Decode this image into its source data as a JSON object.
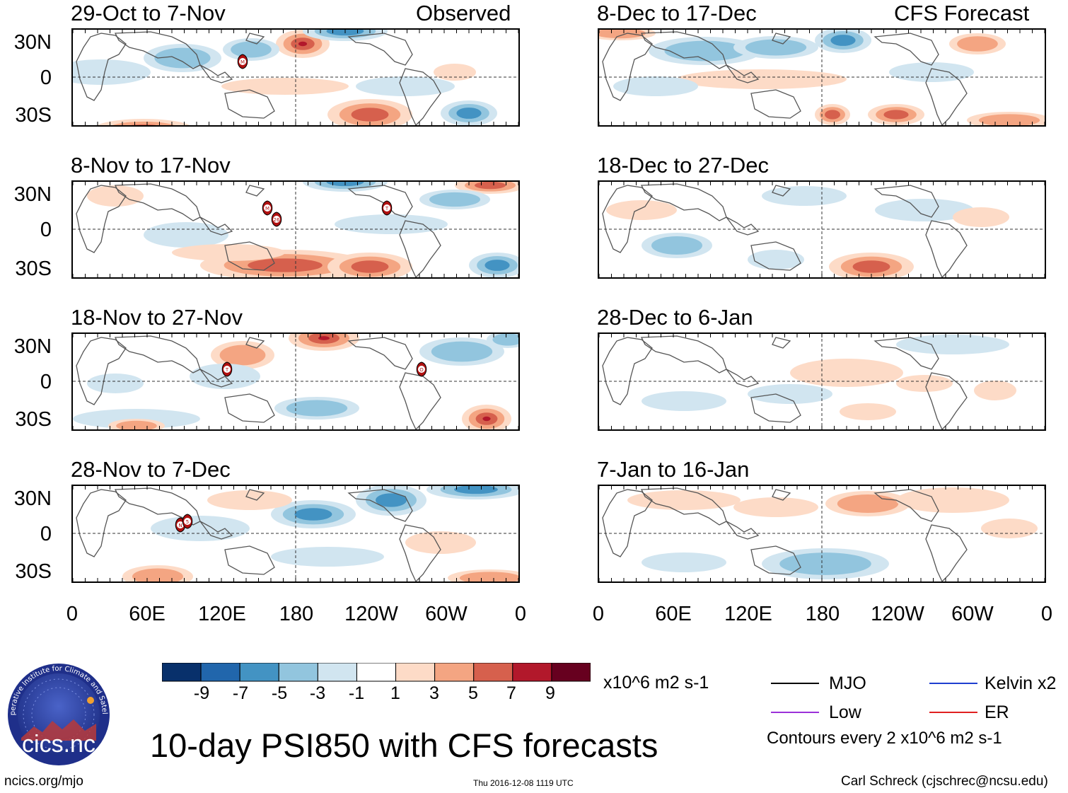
{
  "headers": {
    "observed": "Observed",
    "forecast": "CFS Forecast"
  },
  "panels": [
    {
      "id": "p1",
      "title": "29-Oct to 7-Nov",
      "storms": [
        "M"
      ]
    },
    {
      "id": "p2",
      "title": "8-Nov to 17-Nov",
      "storms": [
        "M",
        "26",
        "T"
      ]
    },
    {
      "id": "p3",
      "title": "18-Nov to 27-Nov",
      "storms": [
        "T",
        "O"
      ]
    },
    {
      "id": "p4",
      "title": "28-Nov to 7-Dec",
      "storms": [
        "N",
        "5"
      ]
    },
    {
      "id": "p5",
      "title": "8-Dec to 17-Dec",
      "storms": []
    },
    {
      "id": "p6",
      "title": "18-Dec to 27-Dec",
      "storms": []
    },
    {
      "id": "p7",
      "title": "28-Dec to 6-Jan",
      "storms": []
    },
    {
      "id": "p8",
      "title": "7-Jan to 16-Jan",
      "storms": []
    }
  ],
  "lat_labels": [
    "30N",
    "0",
    "30S"
  ],
  "lon_labels": [
    "0",
    "60E",
    "120E",
    "180",
    "120W",
    "60W",
    "0"
  ],
  "colorbar": {
    "ticks": [
      "-9",
      "-7",
      "-5",
      "-3",
      "-1",
      "1",
      "3",
      "5",
      "7",
      "9"
    ],
    "colors": [
      "#08306b",
      "#2166ac",
      "#4393c3",
      "#92c5de",
      "#d1e5f0",
      "#ffffff",
      "#fddbc7",
      "#f4a582",
      "#d6604d",
      "#b2182b",
      "#67001f"
    ],
    "units": "x10^6 m2 s-1"
  },
  "legend": {
    "items": [
      {
        "label": "MJO",
        "color": "#000000"
      },
      {
        "label": "Kelvin x2",
        "color": "#1f3fd0"
      },
      {
        "label": "Low",
        "color": "#9b30d9"
      },
      {
        "label": "ER",
        "color": "#e02020"
      }
    ],
    "contour_note": "Contours every 2 x10^6 m2 s-1"
  },
  "title": "10-day PSI850 with CFS forecasts",
  "logo_text": "cics.nc",
  "logo_ring_text": "Cooperative Institute for Climate and Satellites",
  "footer": {
    "left": "ncics.org/mjo",
    "center": "Thu 2016-12-08 1119 UTC",
    "right": "Carl Schreck (cjschrec@ncsu.edu)"
  }
}
